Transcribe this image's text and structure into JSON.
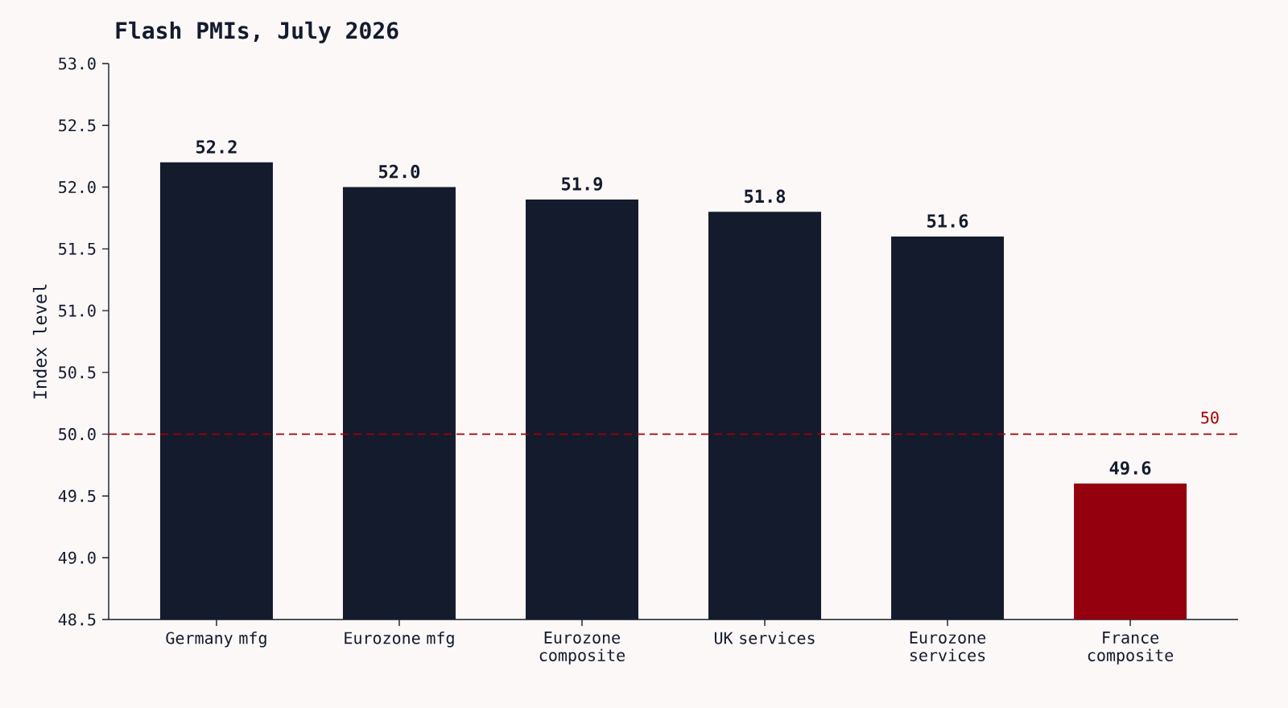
{
  "chart_data": {
    "type": "bar",
    "title": "Flash PMIs, July 2026",
    "ylabel": "Index level",
    "categories": [
      "Germany mfg",
      "Eurozone mfg",
      "Eurozone composite",
      "UK services",
      "Eurozone services",
      "France composite"
    ],
    "values": [
      52.2,
      52.0,
      51.9,
      51.8,
      51.6,
      49.6
    ],
    "colors": [
      "#141b2d",
      "#141b2d",
      "#141b2d",
      "#141b2d",
      "#141b2d",
      "#94000d"
    ],
    "value_labels": [
      "52.2",
      "52.0",
      "51.9",
      "51.8",
      "51.6",
      "49.6"
    ],
    "ylim": [
      48.5,
      53.0
    ],
    "yticks": [
      {
        "value": 48.5,
        "label": "48.5"
      },
      {
        "value": 49.0,
        "label": "49.0"
      },
      {
        "value": 49.5,
        "label": "49.5"
      },
      {
        "value": 50.0,
        "label": "50.0"
      },
      {
        "value": 50.5,
        "label": "50.5"
      },
      {
        "value": 51.0,
        "label": "51.0"
      },
      {
        "value": 51.5,
        "label": "51.5"
      },
      {
        "value": 52.0,
        "label": "52.0"
      },
      {
        "value": 52.5,
        "label": "52.5"
      },
      {
        "value": 53.0,
        "label": "53.0"
      }
    ],
    "ref_lines": [
      {
        "axis": "y",
        "value": 50,
        "label": "50",
        "color": "#a00000",
        "line_style": "dashed"
      }
    ]
  }
}
